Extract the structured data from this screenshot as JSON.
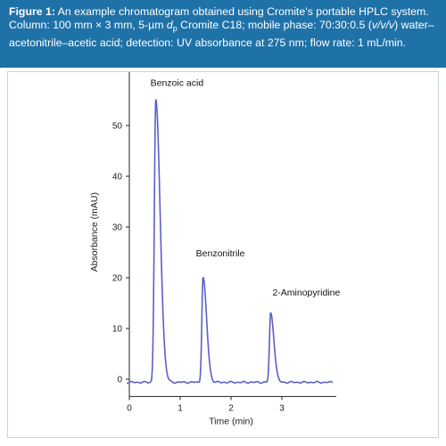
{
  "caption": {
    "label": "Figure 1:",
    "text_part1": " An example chromatogram obtained using Cromite’s portable HPLC system. Column: 100 mm × 3 mm, 5-µm ",
    "dp_main": "d",
    "dp_sub": "p",
    "text_part2": " Cromite C18; mobile phase: 70:30:0.5 (",
    "vvv": "v/v/v",
    "text_part3": ") water–acetonitrile–acetic acid; detection: UV absorbance at 275 nm; flow rate: 1 mL/min."
  },
  "colors": {
    "caption_bg": "#1f72a8",
    "trace": "#5b5fc7"
  },
  "chart_data": {
    "type": "line",
    "xlabel": "Time (min)",
    "ylabel": "Absorbance (mAU)",
    "xlim": [
      0,
      4
    ],
    "ylim": [
      -2,
      60
    ],
    "xticks": [
      0,
      1,
      2,
      3
    ],
    "yticks": [
      0,
      10,
      20,
      30,
      40,
      50
    ],
    "baseline": -0.6,
    "peaks": [
      {
        "name": "Benzoic acid",
        "time": 0.52,
        "height": 55
      },
      {
        "name": "Benzonitrile",
        "time": 1.45,
        "height": 20
      },
      {
        "name": "2-Aminopyridine",
        "time": 2.78,
        "height": 13
      }
    ]
  }
}
